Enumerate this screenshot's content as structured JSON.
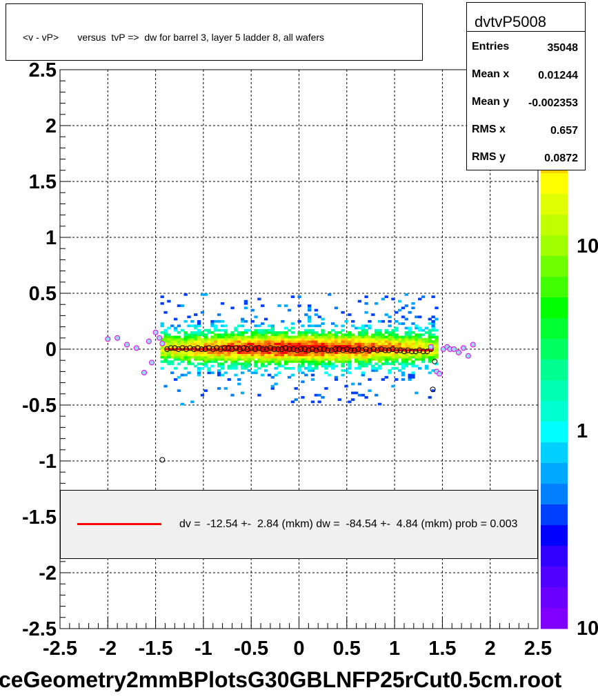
{
  "title": "<v - vP>       versus  tvP =>  dw for barrel 3, layer 5 ladder 8, all wafers",
  "stats": {
    "name": "dvtvP5008",
    "rows": [
      {
        "label": "Entries",
        "value": "35048"
      },
      {
        "label": "Mean x",
        "value": "0.01244"
      },
      {
        "label": "Mean y",
        "value": "-0.002353"
      },
      {
        "label": "RMS x",
        "value": "0.657"
      },
      {
        "label": "RMS y",
        "value": "0.0872"
      }
    ]
  },
  "legend": {
    "text": "dv =  -12.54 +-  2.84 (mkm) dw =  -84.54 +-  4.84 (mkm) prob = 0.003",
    "line_color": "#ff0000"
  },
  "footer": "ceGeometry2mmBPlotsG30GBLNFP25rCut0.5cm.root",
  "colorbar": {
    "labels": [
      "10",
      "1",
      "10"
    ],
    "palette": [
      "#8000ff",
      "#6a00ff",
      "#5000ff",
      "#3000ff",
      "#0000ff",
      "#0040ff",
      "#0080ff",
      "#00a8ff",
      "#00d0ff",
      "#00ffff",
      "#00ffd0",
      "#00ffb0",
      "#00ff90",
      "#00ff60",
      "#00ff30",
      "#00ff00",
      "#40ff00",
      "#70ff00",
      "#a0ff00",
      "#c0ff00",
      "#e0ff00",
      "#ffff00",
      "#ffd000",
      "#ffa000",
      "#ff7000",
      "#ff4000",
      "#ff0000"
    ]
  },
  "chart_data": {
    "type": "heatmap",
    "xlim": [
      -2.5,
      2.5
    ],
    "ylim": [
      -2.5,
      2.5
    ],
    "xticks": [
      "-2.5",
      "-2",
      "-1.5",
      "-1",
      "-0.5",
      "0",
      "0.5",
      "1",
      "1.5",
      "2",
      "2.5"
    ],
    "yticks": [
      "2.5",
      "2",
      "1.5",
      "1",
      "0.5",
      "0",
      "-0.5",
      "-1",
      "-1.5",
      "-2",
      "-2.5"
    ],
    "xtick_values": [
      -2.5,
      -2,
      -1.5,
      -1,
      -0.5,
      0,
      0.5,
      1,
      1.5,
      2,
      2.5
    ],
    "ytick_values": [
      2.5,
      2,
      1.5,
      1,
      0.5,
      0,
      -0.5,
      -1,
      -1.5,
      -2,
      -2.5
    ],
    "grid": true,
    "density": {
      "x_range": [
        -1.45,
        1.45
      ],
      "y_range": [
        -0.5,
        0.5
      ],
      "center_y": 0.0
    },
    "fit_line": {
      "x": [
        -1.4,
        1.4
      ],
      "y": [
        0.0,
        -0.01
      ],
      "color": "#ff0000"
    },
    "profile_points": {
      "x": [
        -1.38,
        -1.34,
        -1.3,
        -1.26,
        -1.22,
        -1.18,
        -1.14,
        -1.1,
        -1.06,
        -1.02,
        -0.98,
        -0.94,
        -0.9,
        -0.86,
        -0.82,
        -0.78,
        -0.74,
        -0.7,
        -0.66,
        -0.62,
        -0.58,
        -0.54,
        -0.5,
        -0.46,
        -0.42,
        -0.38,
        -0.34,
        -0.3,
        -0.26,
        -0.22,
        -0.18,
        -0.14,
        -0.1,
        -0.06,
        -0.02,
        0.02,
        0.06,
        0.1,
        0.14,
        0.18,
        0.22,
        0.26,
        0.3,
        0.34,
        0.38,
        0.42,
        0.46,
        0.5,
        0.54,
        0.58,
        0.62,
        0.66,
        0.7,
        0.74,
        0.78,
        0.82,
        0.86,
        0.9,
        0.94,
        0.98,
        1.02,
        1.06,
        1.1,
        1.14,
        1.18,
        1.22,
        1.26,
        1.3,
        1.34,
        1.38,
        1.4,
        1.42,
        -1.43
      ],
      "y": [
        0.0,
        0.01,
        0.01,
        0.0,
        0.01,
        0.0,
        0.01,
        0.0,
        0.01,
        0.0,
        0.0,
        0.01,
        0.0,
        0.01,
        0.0,
        0.01,
        0.01,
        0.0,
        0.01,
        0.0,
        0.01,
        0.0,
        0.01,
        0.0,
        0.01,
        0.0,
        0.0,
        0.01,
        0.0,
        0.0,
        0.0,
        0.01,
        0.0,
        0.0,
        -0.01,
        0.0,
        0.0,
        -0.01,
        0.0,
        -0.01,
        0.0,
        0.0,
        -0.01,
        -0.01,
        0.0,
        0.0,
        -0.01,
        0.0,
        -0.01,
        -0.01,
        0.0,
        -0.01,
        0.0,
        -0.01,
        0.0,
        -0.01,
        0.0,
        -0.01,
        -0.01,
        0.0,
        -0.01,
        -0.01,
        -0.02,
        -0.01,
        -0.02,
        -0.02,
        -0.01,
        -0.02,
        -0.02,
        0.0,
        -0.36,
        -0.11,
        -0.99
      ]
    },
    "extra_points": {
      "x": [
        -2.0,
        -1.9,
        -1.8,
        -1.7,
        -1.62,
        -1.57,
        -1.54,
        -1.5,
        -1.46,
        -1.43,
        1.38,
        1.44,
        1.47,
        1.51,
        1.55,
        1.58,
        1.62,
        1.67,
        1.72,
        1.77,
        1.82
      ],
      "y": [
        0.09,
        0.1,
        0.04,
        0.01,
        -0.21,
        0.07,
        -0.12,
        0.15,
        0.1,
        0.05,
        0.02,
        -0.2,
        -0.22,
        0.0,
        0.02,
        0.0,
        0.0,
        -0.03,
        0.01,
        -0.06,
        0.04
      ]
    }
  }
}
